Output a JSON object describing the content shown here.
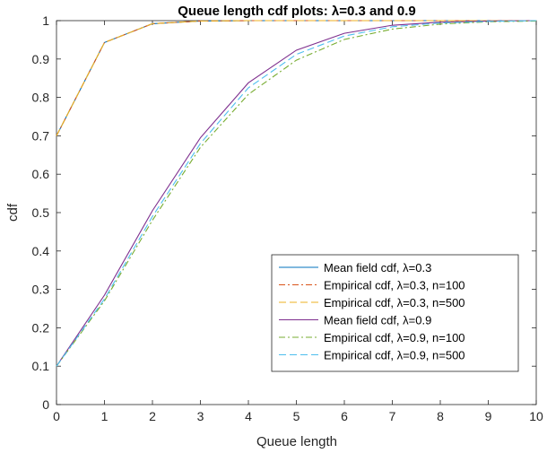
{
  "chart_data": {
    "type": "line",
    "title": "Queue length cdf plots: λ=0.3 and 0.9",
    "xlabel": "Queue length",
    "ylabel": "cdf",
    "xlim": [
      0,
      10
    ],
    "ylim": [
      0,
      1
    ],
    "xticks": [
      "0",
      "1",
      "2",
      "3",
      "4",
      "5",
      "6",
      "7",
      "8",
      "9",
      "10"
    ],
    "yticks": [
      "0",
      "0.1",
      "0.2",
      "0.3",
      "0.4",
      "0.5",
      "0.6",
      "0.7",
      "0.8",
      "0.9",
      "1"
    ],
    "grid": false,
    "legend_position": "lower-right",
    "x": [
      0,
      1,
      2,
      3,
      4,
      5,
      6,
      7,
      8,
      9,
      10
    ],
    "series": [
      {
        "name": "Mean field cdf, λ=0.3",
        "color": "#0072BD",
        "style": "solid",
        "values": [
          0.7,
          0.943,
          0.992,
          0.999,
          1.0,
          1.0,
          1.0,
          1.0,
          1.0,
          1.0,
          1.0
        ]
      },
      {
        "name": "Empirical cdf, λ=0.3, n=100",
        "color": "#D95319",
        "style": "dashdot",
        "values": [
          0.7,
          0.943,
          0.992,
          0.999,
          1.0,
          1.0,
          1.0,
          1.0,
          1.0,
          1.0,
          1.0
        ]
      },
      {
        "name": "Empirical cdf, λ=0.3, n=500",
        "color": "#EDB120",
        "style": "dashed",
        "values": [
          0.7,
          0.943,
          0.992,
          0.999,
          1.0,
          1.0,
          1.0,
          1.0,
          1.0,
          1.0,
          1.0
        ]
      },
      {
        "name": "Mean field cdf, λ=0.9",
        "color": "#7E2F8E",
        "style": "solid",
        "values": [
          0.1,
          0.285,
          0.505,
          0.695,
          0.838,
          0.923,
          0.967,
          0.988,
          0.996,
          0.999,
          1.0
        ]
      },
      {
        "name": "Empirical cdf, λ=0.9, n=100",
        "color": "#77AC30",
        "style": "dashdot",
        "values": [
          0.1,
          0.27,
          0.48,
          0.67,
          0.808,
          0.897,
          0.951,
          0.978,
          0.991,
          0.997,
          0.999
        ]
      },
      {
        "name": "Empirical cdf, λ=0.9, n=500",
        "color": "#4DBEEE",
        "style": "dashed",
        "values": [
          0.1,
          0.275,
          0.49,
          0.68,
          0.825,
          0.912,
          0.96,
          0.984,
          0.994,
          0.998,
          1.0
        ]
      }
    ]
  }
}
